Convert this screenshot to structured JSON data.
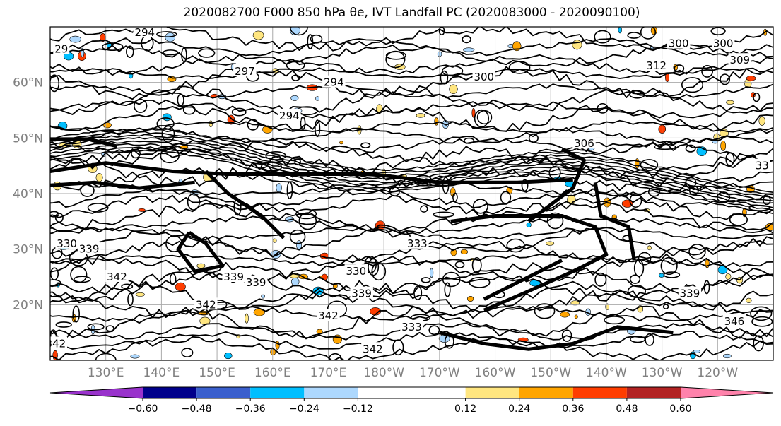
{
  "chart_data": {
    "type": "contour map",
    "title": "2020082700 F000 850 hPa θe, IVT Landfall PC (2020083000 - 2020090100)",
    "lon_range": [
      120,
      250
    ],
    "lat_range": [
      10,
      70
    ],
    "lat_ticks": [
      {
        "value": 20,
        "label": "20°N"
      },
      {
        "value": 30,
        "label": "30°N"
      },
      {
        "value": 40,
        "label": "40°N"
      },
      {
        "value": 50,
        "label": "50°N"
      },
      {
        "value": 60,
        "label": "60°N"
      }
    ],
    "lon_ticks": [
      {
        "value": 130,
        "label": "130°E"
      },
      {
        "value": 140,
        "label": "140°E"
      },
      {
        "value": 150,
        "label": "150°E"
      },
      {
        "value": 160,
        "label": "160°E"
      },
      {
        "value": 170,
        "label": "170°E"
      },
      {
        "value": 180,
        "label": "180°W"
      },
      {
        "value": 190,
        "label": "170°W"
      },
      {
        "value": 200,
        "label": "160°W"
      },
      {
        "value": 210,
        "label": "150°W"
      },
      {
        "value": 220,
        "label": "140°W"
      },
      {
        "value": 230,
        "label": "130°W"
      },
      {
        "value": 240,
        "label": "120°W"
      }
    ],
    "colorbar": {
      "boundaries": [
        -0.72,
        -0.6,
        -0.48,
        -0.36,
        -0.24,
        -0.12,
        0.12,
        0.24,
        0.36,
        0.48,
        0.6,
        0.72
      ],
      "tick_values": [
        -0.6,
        -0.48,
        -0.36,
        -0.24,
        -0.12,
        0.12,
        0.24,
        0.36,
        0.48,
        0.6
      ],
      "tick_labels": [
        "−0.60",
        "−0.48",
        "−0.36",
        "−0.24",
        "−0.12",
        "0.12",
        "0.24",
        "0.36",
        "0.48",
        "0.60"
      ],
      "colors": [
        "#9932cc",
        "#00008b",
        "#3a5fcd",
        "#00bfff",
        "#add8fe",
        "#ffffff",
        "#ffe680",
        "#ffa500",
        "#ff3d00",
        "#b22222",
        "#ff82ab"
      ],
      "extend": "both"
    },
    "contour_labels": [
      {
        "text": "294",
        "lon": 137,
        "lat": 69
      },
      {
        "text": "29",
        "lon": 122,
        "lat": 66
      },
      {
        "text": "297",
        "lon": 155,
        "lat": 62
      },
      {
        "text": "294",
        "lon": 163,
        "lat": 54
      },
      {
        "text": "294",
        "lon": 171,
        "lat": 60
      },
      {
        "text": "300",
        "lon": 198,
        "lat": 61
      },
      {
        "text": "300",
        "lon": 233,
        "lat": 67
      },
      {
        "text": "300",
        "lon": 241,
        "lat": 67
      },
      {
        "text": "309",
        "lon": 244,
        "lat": 64
      },
      {
        "text": "312",
        "lon": 229,
        "lat": 63
      },
      {
        "text": "306",
        "lon": 216,
        "lat": 49
      },
      {
        "text": "330",
        "lon": 123,
        "lat": 31
      },
      {
        "text": "339",
        "lon": 127,
        "lat": 30
      },
      {
        "text": "339",
        "lon": 153,
        "lat": 25
      },
      {
        "text": "339",
        "lon": 157,
        "lat": 24
      },
      {
        "text": "339",
        "lon": 176,
        "lat": 22
      },
      {
        "text": "342",
        "lon": 132,
        "lat": 25
      },
      {
        "text": "342",
        "lon": 148,
        "lat": 20
      },
      {
        "text": "342",
        "lon": 170,
        "lat": 18
      },
      {
        "text": "342",
        "lon": 178,
        "lat": 12
      },
      {
        "text": "333",
        "lon": 185,
        "lat": 16
      },
      {
        "text": "333",
        "lon": 186,
        "lat": 31
      },
      {
        "text": "330",
        "lon": 175,
        "lat": 26
      },
      {
        "text": "339",
        "lon": 235,
        "lat": 22
      },
      {
        "text": "346",
        "lon": 243,
        "lat": 17
      },
      {
        "text": "33",
        "lon": 248,
        "lat": 45
      },
      {
        "text": "342",
        "lon": 121,
        "lat": 13
      }
    ]
  }
}
